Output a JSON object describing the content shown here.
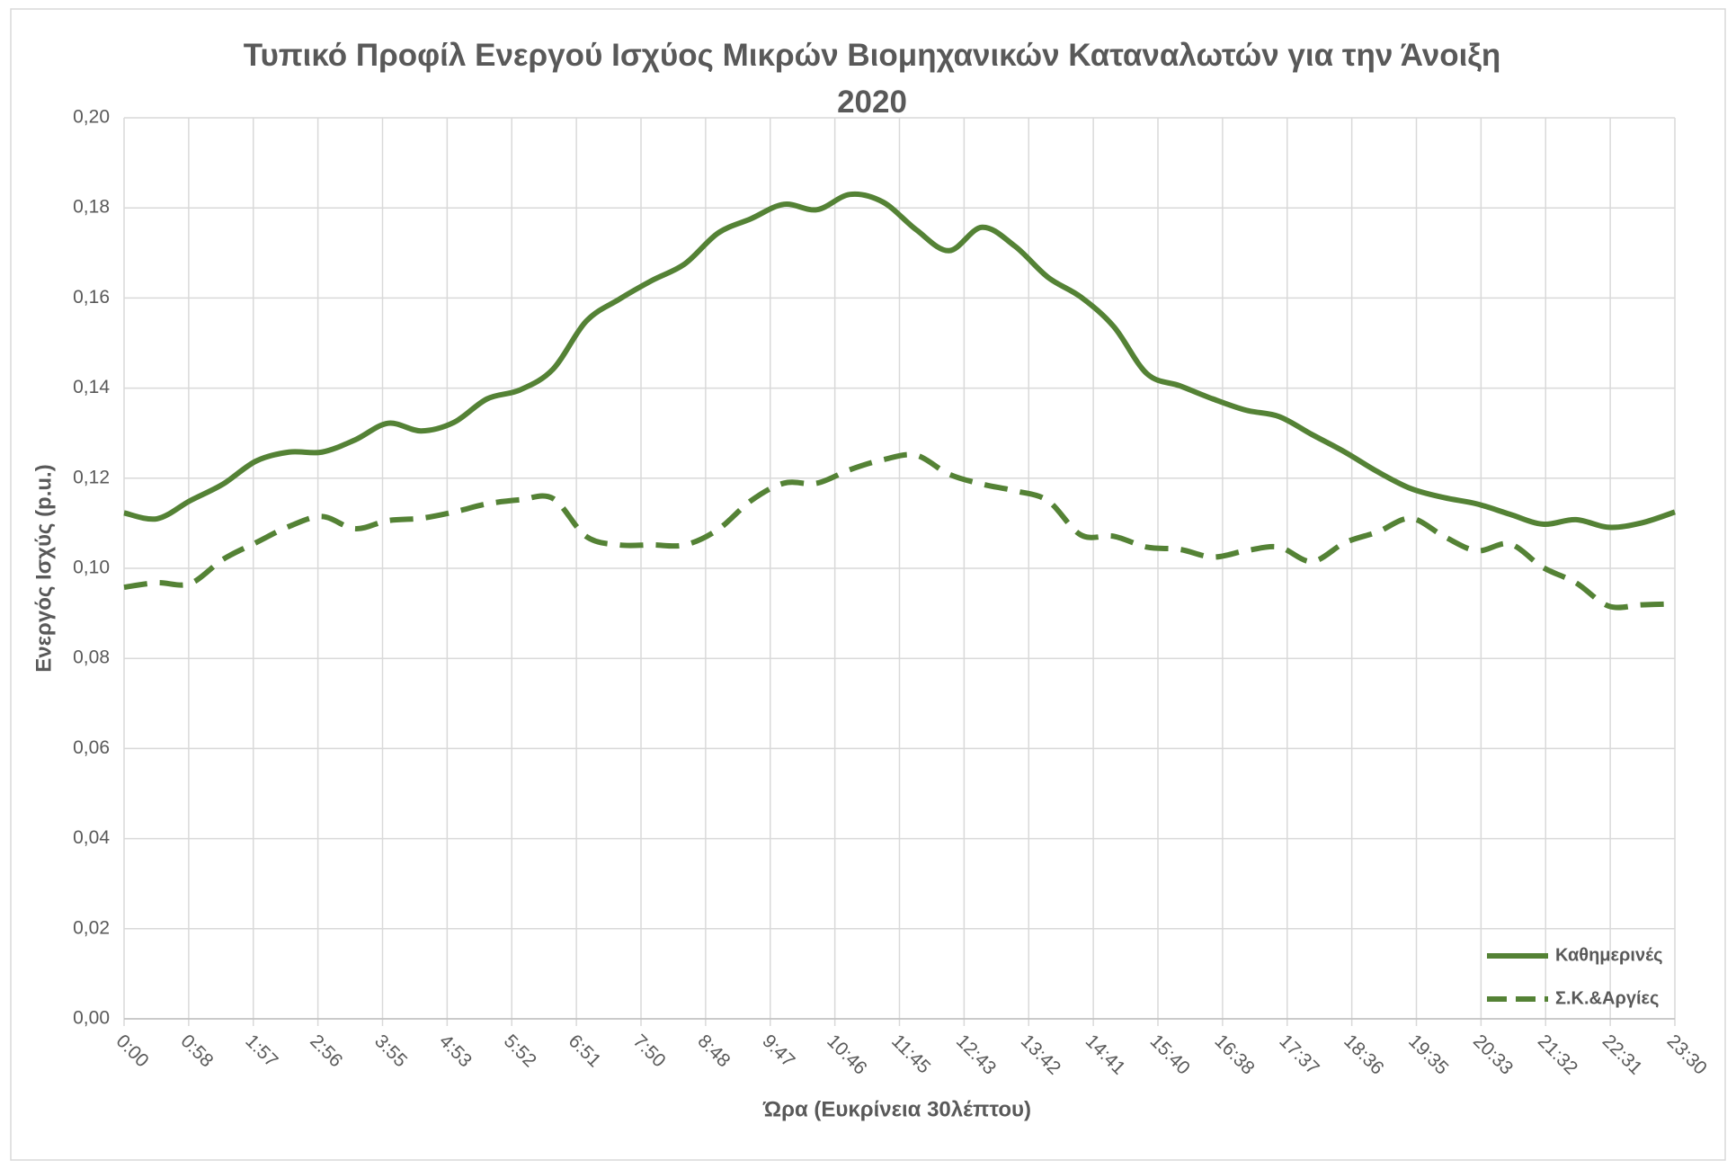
{
  "chart_data": {
    "type": "line",
    "title": "Τυπικό Προφίλ Ενεργού Ισχύος Μικρών Βιομηχανικών Καταναλωτών για την Άνοιξη 2020",
    "xlabel": "Ώρα (Ευκρίνεια 30λέπτου)",
    "ylabel": "Ενεργός Ισχύς (p.u.)",
    "x": [
      0,
      30,
      60,
      90,
      120,
      150,
      180,
      210,
      240,
      270,
      300,
      330,
      360,
      390,
      420,
      450,
      480,
      510,
      540,
      570,
      600,
      630,
      660,
      690,
      720,
      750,
      780,
      810,
      840,
      870,
      900,
      930,
      960,
      990,
      1020,
      1050,
      1080,
      1110,
      1140,
      1170,
      1200,
      1230,
      1260,
      1290,
      1320,
      1350,
      1380,
      1410
    ],
    "xlim": [
      0,
      1410
    ],
    "xticks": [
      {
        "value": 0,
        "label": "0:00"
      },
      {
        "value": 58.75,
        "label": "0:58"
      },
      {
        "value": 117.5,
        "label": "1:57"
      },
      {
        "value": 176.25,
        "label": "2:56"
      },
      {
        "value": 235,
        "label": "3:55"
      },
      {
        "value": 293.75,
        "label": "4:53"
      },
      {
        "value": 352.5,
        "label": "5:52"
      },
      {
        "value": 411.25,
        "label": "6:51"
      },
      {
        "value": 470,
        "label": "7:50"
      },
      {
        "value": 528.75,
        "label": "8:48"
      },
      {
        "value": 587.5,
        "label": "9:47"
      },
      {
        "value": 646.25,
        "label": "10:46"
      },
      {
        "value": 705,
        "label": "11:45"
      },
      {
        "value": 763.75,
        "label": "12:43"
      },
      {
        "value": 822.5,
        "label": "13:42"
      },
      {
        "value": 881.25,
        "label": "14:41"
      },
      {
        "value": 940,
        "label": "15:40"
      },
      {
        "value": 998.75,
        "label": "16:38"
      },
      {
        "value": 1057.5,
        "label": "17:37"
      },
      {
        "value": 1116.25,
        "label": "18:36"
      },
      {
        "value": 1175,
        "label": "19:35"
      },
      {
        "value": 1233.75,
        "label": "20:33"
      },
      {
        "value": 1292.5,
        "label": "21:32"
      },
      {
        "value": 1351.25,
        "label": "22:31"
      },
      {
        "value": 1410,
        "label": "23:30"
      }
    ],
    "ylim": [
      0,
      0.2
    ],
    "yticks": [
      {
        "value": 0,
        "label": "0,00"
      },
      {
        "value": 0.02,
        "label": "0,02"
      },
      {
        "value": 0.04,
        "label": "0,04"
      },
      {
        "value": 0.06,
        "label": "0,06"
      },
      {
        "value": 0.08,
        "label": "0,08"
      },
      {
        "value": 0.1,
        "label": "0,10"
      },
      {
        "value": 0.12,
        "label": "0,12"
      },
      {
        "value": 0.14,
        "label": "0,14"
      },
      {
        "value": 0.16,
        "label": "0,16"
      },
      {
        "value": 0.18,
        "label": "0,18"
      },
      {
        "value": 0.2,
        "label": "0,20"
      }
    ],
    "grid": true,
    "legend": "lower right",
    "series": [
      {
        "name": "Καθημερινές",
        "color": "#548235",
        "style": "solid",
        "values": [
          0.1123,
          0.111,
          0.115,
          0.1187,
          0.1238,
          0.1258,
          0.1258,
          0.1285,
          0.1322,
          0.1305,
          0.1324,
          0.1376,
          0.1396,
          0.1442,
          0.1548,
          0.1597,
          0.1639,
          0.1676,
          0.1744,
          0.1776,
          0.1808,
          0.1796,
          0.183,
          0.1813,
          0.1752,
          0.1705,
          0.1757,
          0.1715,
          0.1646,
          0.1602,
          0.1536,
          0.1432,
          0.1405,
          0.1376,
          0.1351,
          0.1337,
          0.1297,
          0.1258,
          0.1214,
          0.1177,
          0.1157,
          0.1143,
          0.112,
          0.1098,
          0.1108,
          0.1091,
          0.1101,
          0.1125
        ]
      },
      {
        "name": "Σ.Κ.&Αργίες",
        "color": "#548235",
        "style": "dashed",
        "values": [
          0.0958,
          0.0968,
          0.0966,
          0.102,
          0.1057,
          0.1093,
          0.1115,
          0.1088,
          0.1106,
          0.1111,
          0.1125,
          0.1143,
          0.1152,
          0.1155,
          0.1071,
          0.1052,
          0.1052,
          0.1052,
          0.1086,
          0.115,
          0.1189,
          0.1189,
          0.1219,
          0.1241,
          0.1251,
          0.1209,
          0.1187,
          0.1172,
          0.115,
          0.1074,
          0.1071,
          0.1047,
          0.1042,
          0.1025,
          0.1039,
          0.1047,
          0.1015,
          0.1057,
          0.1081,
          0.1111,
          0.1071,
          0.1039,
          0.1054,
          0.1002,
          0.0968,
          0.0916,
          0.0919,
          0.0921
        ]
      }
    ]
  }
}
